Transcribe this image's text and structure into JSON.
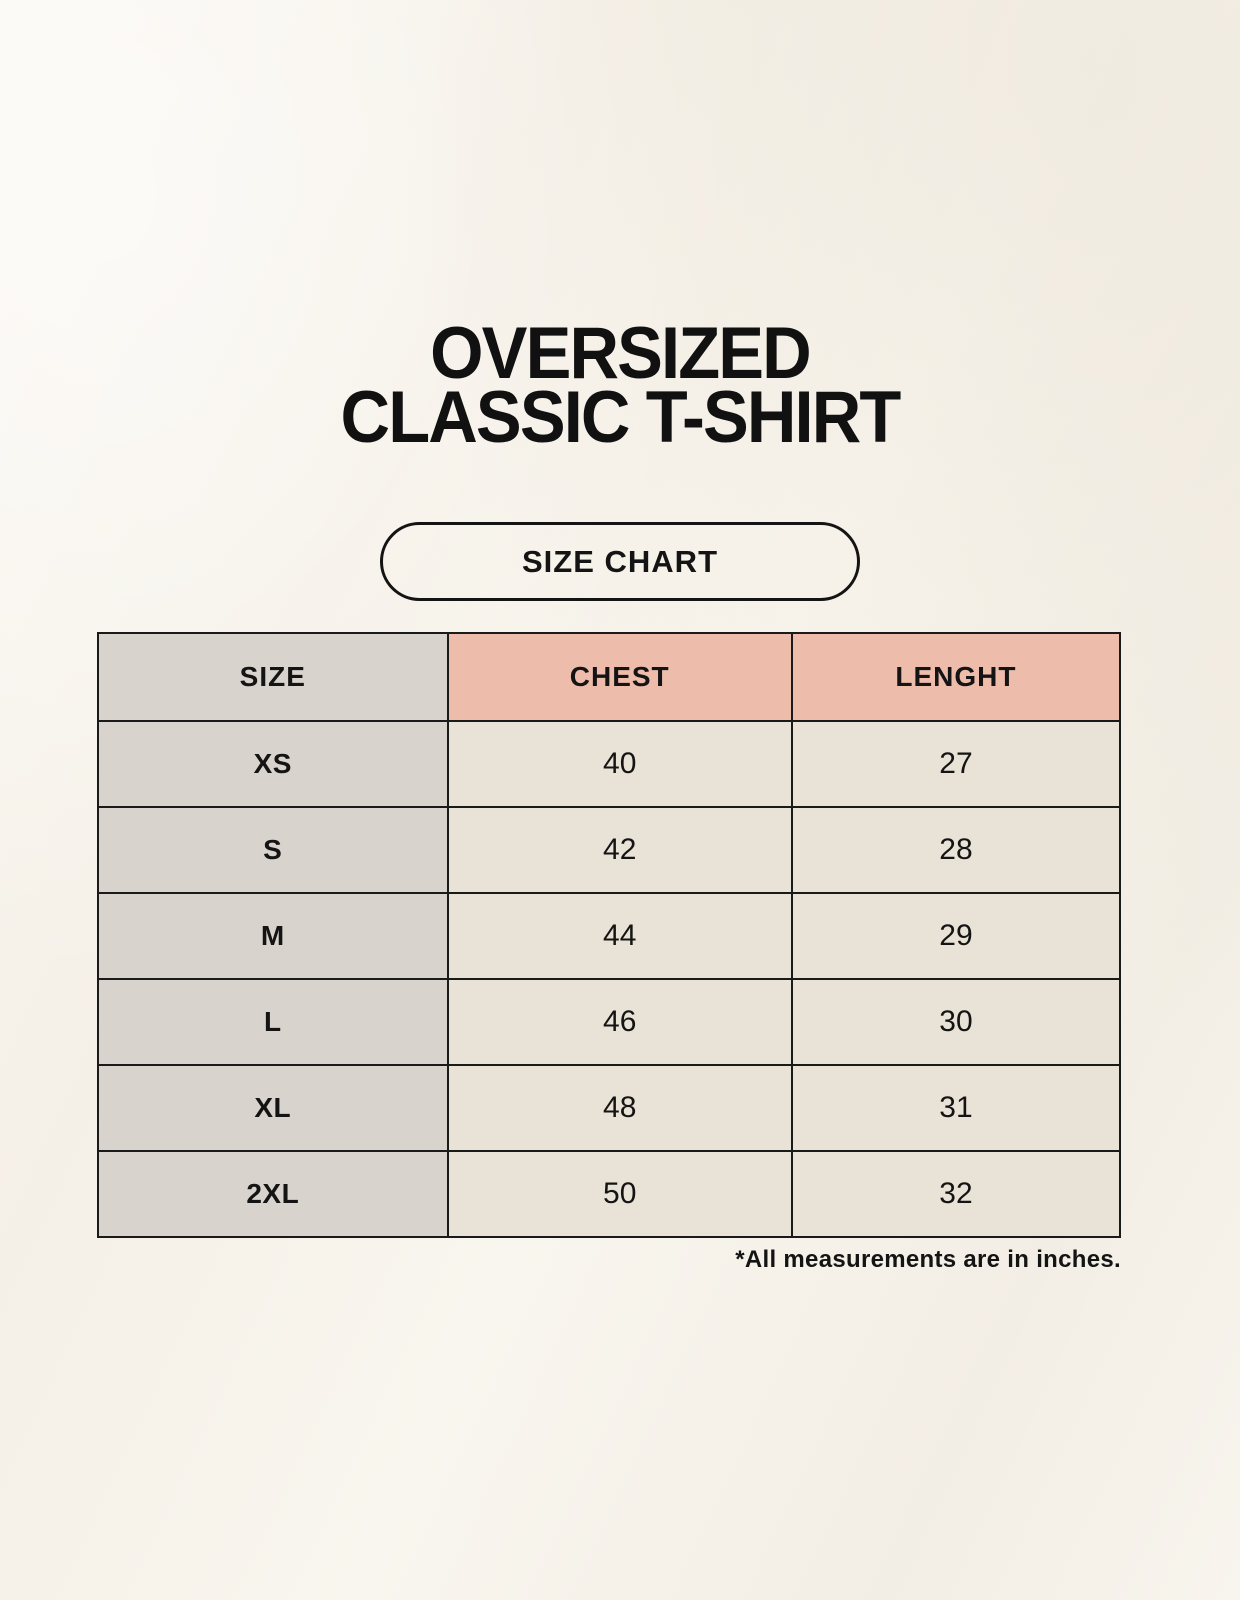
{
  "page": {
    "title_line1": "OVERSIZED",
    "title_line2": "CLASSIC T-SHIRT",
    "badge_label": "SIZE CHART",
    "footnote": "*All measurements are in inches."
  },
  "colors": {
    "page_background": "#f6f2ea",
    "header_accent_pink": "#edbcab",
    "size_column_gray": "#d9d3ce",
    "cell_cream": "#e9e2d6",
    "table_border": "#1a1a1a",
    "text": "#141414"
  },
  "chart_data": {
    "type": "table",
    "columns": [
      "SIZE",
      "CHEST",
      "LENGHT"
    ],
    "rows": [
      {
        "size": "XS",
        "chest": "40",
        "lenght": "27"
      },
      {
        "size": "S",
        "chest": "42",
        "lenght": "28"
      },
      {
        "size": "M",
        "chest": "44",
        "lenght": "29"
      },
      {
        "size": "L",
        "chest": "46",
        "lenght": "30"
      },
      {
        "size": "XL",
        "chest": "48",
        "lenght": "31"
      },
      {
        "size": "2XL",
        "chest": "50",
        "lenght": "32"
      }
    ],
    "units_note": "*All measurements are in inches."
  }
}
